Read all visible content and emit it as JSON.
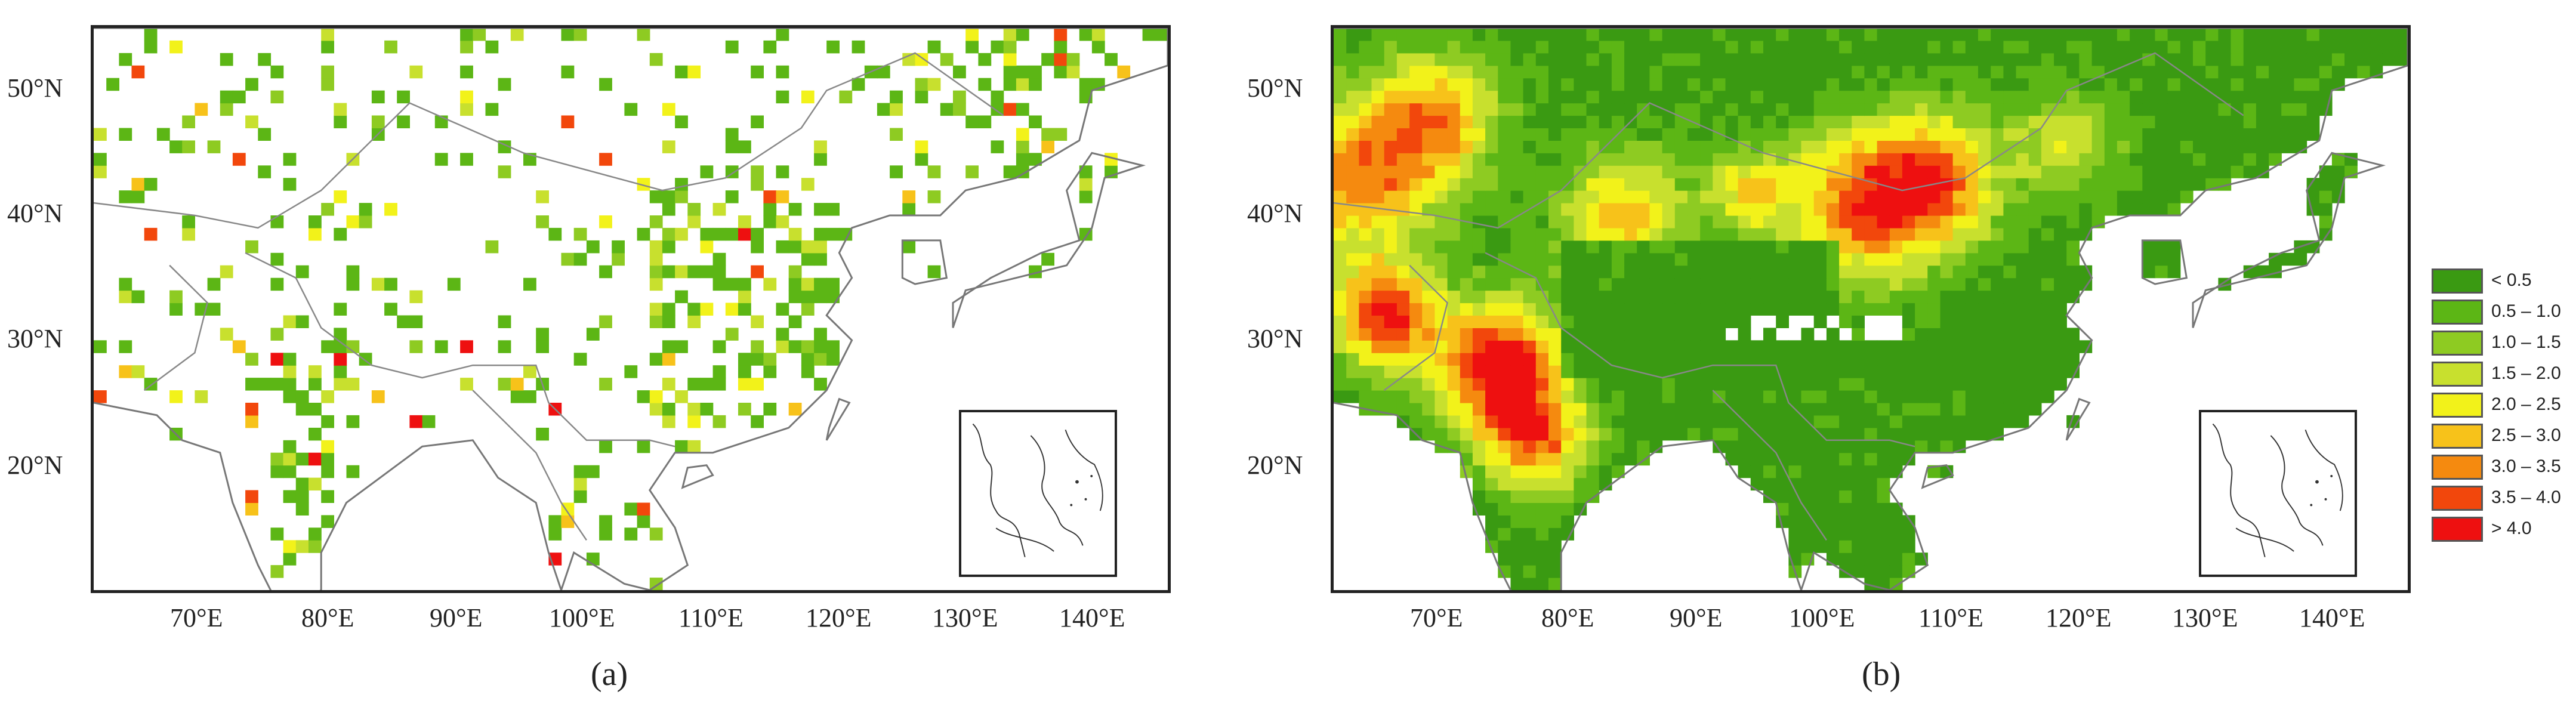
{
  "panels": [
    {
      "id": "a",
      "caption": "(a)",
      "lat_labels": [
        "50°N",
        "40°N",
        "30°N",
        "20°N"
      ],
      "lon_labels": [
        "70°E",
        "80°E",
        "90°E",
        "100°E",
        "110°E",
        "120°E",
        "130°E",
        "140°E"
      ],
      "style": "sparse station grid cells"
    },
    {
      "id": "b",
      "caption": "(b)",
      "lat_labels": [
        "50°N",
        "40°N",
        "30°N",
        "20°N"
      ],
      "lon_labels": [
        "70°E",
        "80°E",
        "90°E",
        "100°E",
        "110°E",
        "120°E",
        "130°E",
        "140°E"
      ],
      "style": "continuous gridded field"
    }
  ],
  "legend": {
    "items": [
      {
        "label": "< 0.5",
        "color": "#3a9a12"
      },
      {
        "label": "0.5 – 1.0",
        "color": "#5cb615"
      },
      {
        "label": "1.0 – 1.5",
        "color": "#8ecb22"
      },
      {
        "label": "1.5 – 2.0",
        "color": "#c8e02e"
      },
      {
        "label": "2.0 – 2.5",
        "color": "#f2f21a"
      },
      {
        "label": "2.5 – 3.0",
        "color": "#f7c21a"
      },
      {
        "label": "3.0 – 3.5",
        "color": "#f58a0f"
      },
      {
        "label": "3.5 – 4.0",
        "color": "#f2470c"
      },
      {
        "label": "> 4.0",
        "color": "#ee1010"
      }
    ]
  },
  "map_extent": {
    "lon_min": 62,
    "lon_max": 147,
    "lat_min": 10,
    "lat_max": 55
  }
}
